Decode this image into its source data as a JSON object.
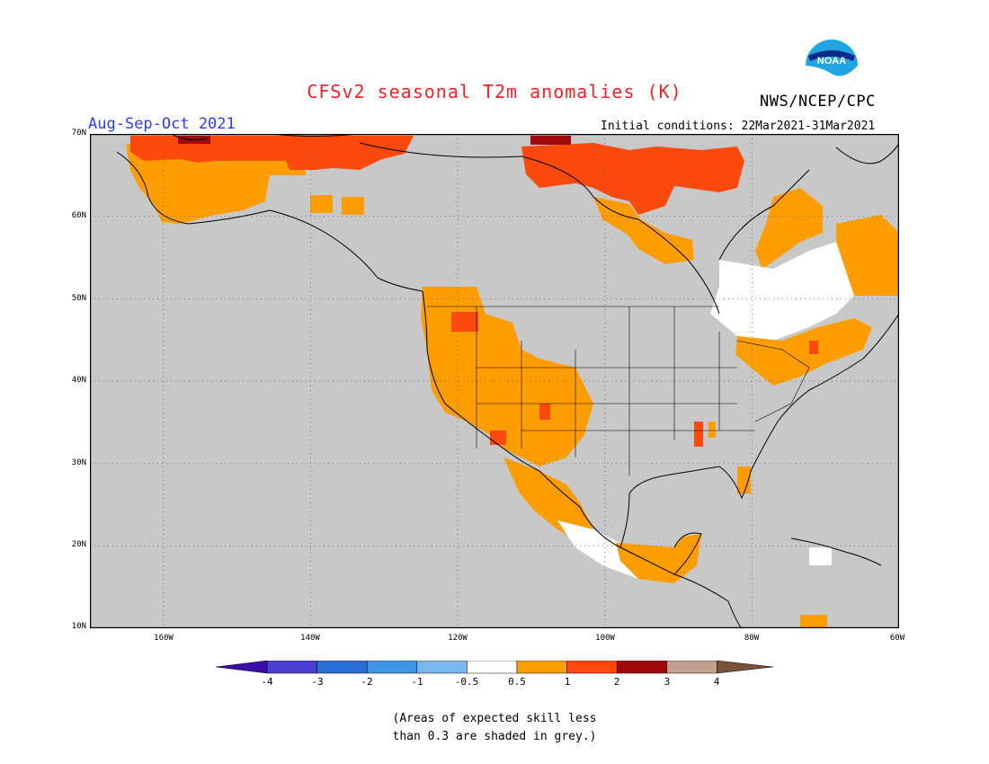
{
  "title": "CFSv2 seasonal T2m anomalies (K)",
  "agency": "NWS/NCEP/CPC",
  "logo_text": "NOAA",
  "season": "Aug-Sep-Oct 2021",
  "initial_conditions": "Initial conditions: 22Mar2021-31Mar2021",
  "lat_ticks": [
    "70N",
    "60N",
    "50N",
    "40N",
    "30N",
    "20N",
    "10N"
  ],
  "lon_ticks": [
    "160W",
    "140W",
    "120W",
    "100W",
    "80W",
    "60W"
  ],
  "colorbar": {
    "labels": [
      "-4",
      "-3",
      "-2",
      "-1",
      "-0.5",
      "0.5",
      "1",
      "2",
      "3",
      "4"
    ],
    "colors": [
      "#3a0fa8",
      "#4b3fd3",
      "#2a6fd6",
      "#3e95e8",
      "#78b8ee",
      "#ffffff",
      "#fe9d00",
      "#fc4a0f",
      "#a00a0a",
      "#c29e8e",
      "#7a5238"
    ]
  },
  "colors": {
    "ocean_grey": "#c8c8c8",
    "land_grey": "#c8c8c8",
    "anom_05_1": "#fe9d00",
    "anom_1_2": "#fc4a0f",
    "anom_2_3": "#a00a0a",
    "near_zero": "#ffffff"
  },
  "note_line1": "(Areas of expected skill less",
  "note_line2": "than 0.3 are shaded in grey.)"
}
